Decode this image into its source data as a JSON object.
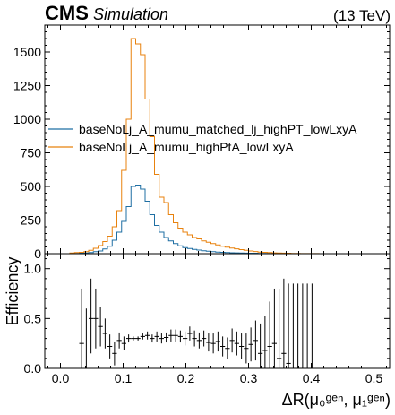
{
  "header": {
    "experiment": "CMS",
    "label": "Simulation",
    "energy": "(13 TeV)"
  },
  "colors": {
    "series1": "#1f6fa3",
    "series2": "#e8820e",
    "ratio": "#000000"
  },
  "chart_data": [
    {
      "type": "line",
      "style": "step-histogram",
      "xlim": [
        -0.025,
        0.525
      ],
      "ylim": [
        0,
        1700
      ],
      "x_ticks": [
        0.0,
        0.1,
        0.2,
        0.3,
        0.4,
        0.5
      ],
      "y_ticks": [
        0,
        250,
        500,
        750,
        1000,
        1250,
        1500
      ],
      "y_tick_labels": [
        "0",
        "250",
        "500",
        "750",
        "1000",
        "1250",
        "1500"
      ],
      "legend_position": "center-left",
      "bin_width": 0.0075,
      "bin_start": 0.015,
      "series": [
        {
          "name": "baseNoLj_A_mumu_matched_lj_highPT_lowLxyA",
          "values": [
            2,
            2,
            3,
            5,
            8,
            15,
            20,
            35,
            55,
            100,
            160,
            240,
            350,
            500,
            510,
            480,
            390,
            290,
            210,
            160,
            120,
            95,
            75,
            58,
            45,
            38,
            32,
            27,
            22,
            18,
            15,
            12,
            10,
            8,
            7,
            6,
            5,
            4,
            3,
            3,
            2,
            2,
            2,
            1,
            1,
            1,
            1,
            0,
            0,
            0,
            0,
            0,
            0,
            0,
            0,
            0,
            0,
            0,
            0,
            0
          ]
        },
        {
          "name": "baseNoLj_A_mumu_highPtA_lowLxyA",
          "values": [
            5,
            8,
            10,
            15,
            25,
            40,
            60,
            90,
            130,
            200,
            320,
            620,
            1000,
            1600,
            1560,
            1480,
            1150,
            870,
            590,
            420,
            380,
            290,
            230,
            190,
            160,
            140,
            120,
            110,
            95,
            85,
            75,
            65,
            55,
            48,
            42,
            36,
            30,
            25,
            20,
            16,
            12,
            10,
            8,
            6,
            5,
            4,
            3,
            2,
            2,
            1,
            1,
            1,
            1,
            0,
            0,
            0,
            0,
            0,
            0,
            0
          ]
        }
      ]
    },
    {
      "type": "line",
      "style": "step-histogram-with-errors",
      "xlim": [
        -0.025,
        0.525
      ],
      "ylim": [
        0,
        1.15
      ],
      "ylabel": "Efficiency",
      "xlabel": "ΔR(μ₀ᵍᵉⁿ, μ₁ᵍᵉⁿ)",
      "x_ticks": [
        0.0,
        0.1,
        0.2,
        0.3,
        0.4,
        0.5
      ],
      "x_tick_labels": [
        "0.0",
        "0.1",
        "0.2",
        "0.3",
        "0.4",
        "0.5"
      ],
      "y_ticks": [
        0.0,
        0.5,
        1.0
      ],
      "y_tick_labels": [
        "0.0",
        "0.5",
        "1.0"
      ],
      "bin_width": 0.0075,
      "bin_start": 0.015,
      "series": [
        {
          "name": "",
          "values": [
            0,
            0,
            0.25,
            0.0,
            0.5,
            0.5,
            0.42,
            0.35,
            0.22,
            0.15,
            0.28,
            0.25,
            0.3,
            0.3,
            0.3,
            0.32,
            0.33,
            0.3,
            0.32,
            0.3,
            0.31,
            0.33,
            0.33,
            0.32,
            0.3,
            0.35,
            0.3,
            0.28,
            0.3,
            0.26,
            0.25,
            0.27,
            0.22,
            0.2,
            0.28,
            0.25,
            0.22,
            0.2,
            0.24,
            0.28,
            0.15,
            0.18,
            0.22,
            0.25,
            0.1,
            0.15,
            0.05,
            0.0,
            0.0,
            0.0,
            0.0,
            0.0,
            0.0,
            0.0,
            0.0,
            0.0,
            0.0,
            0.0,
            0.0,
            0.0
          ],
          "errors_up": [
            0,
            0,
            0.55,
            0.6,
            0.4,
            0.3,
            0.2,
            0.15,
            0.12,
            0.12,
            0.08,
            0.07,
            0.04,
            0.02,
            0.02,
            0.03,
            0.04,
            0.04,
            0.05,
            0.05,
            0.05,
            0.06,
            0.06,
            0.06,
            0.07,
            0.07,
            0.08,
            0.08,
            0.08,
            0.09,
            0.1,
            0.1,
            0.1,
            0.11,
            0.12,
            0.12,
            0.13,
            0.15,
            0.17,
            0.2,
            0.3,
            0.35,
            0.45,
            0.55,
            0.7,
            0.75,
            0.8,
            0.85,
            0.85,
            0.85,
            0.85,
            0.85,
            0,
            0,
            0,
            0,
            0,
            0,
            0,
            0
          ],
          "errors_down": [
            0,
            0,
            0.25,
            0.0,
            0.35,
            0.3,
            0.2,
            0.15,
            0.12,
            0.12,
            0.08,
            0.07,
            0.04,
            0.02,
            0.02,
            0.03,
            0.04,
            0.04,
            0.05,
            0.05,
            0.05,
            0.06,
            0.06,
            0.06,
            0.07,
            0.07,
            0.08,
            0.08,
            0.08,
            0.09,
            0.1,
            0.1,
            0.1,
            0.11,
            0.12,
            0.12,
            0.13,
            0.15,
            0.17,
            0.2,
            0.15,
            0.18,
            0.22,
            0.25,
            0.1,
            0.15,
            0.05,
            0.0,
            0.0,
            0.0,
            0.0,
            0.0,
            0.0,
            0.0,
            0.0,
            0.0,
            0.0,
            0.0,
            0.0,
            0.0
          ]
        }
      ]
    }
  ]
}
